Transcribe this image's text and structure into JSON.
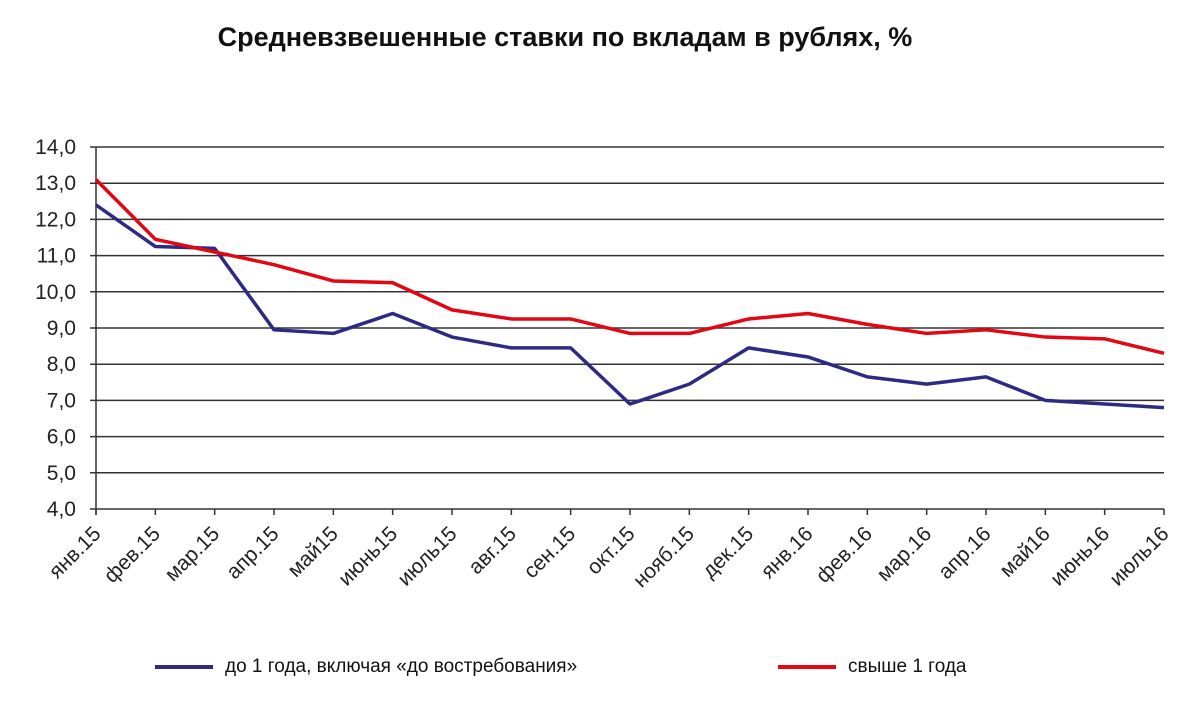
{
  "chart_data": {
    "type": "line",
    "title": "Средневзвешенные ставки по вкладам в рублях, %",
    "xlabel": "",
    "ylabel": "",
    "ylim": [
      4,
      14
    ],
    "yticks": [
      "4,0",
      "5,0",
      "6,0",
      "7,0",
      "8,0",
      "9,0",
      "10,0",
      "11,0",
      "12,0",
      "13,0",
      "14,0"
    ],
    "grid": true,
    "legend_position": "bottom",
    "categories": [
      "янв.15",
      "фев.15",
      "мар.15",
      "апр.15",
      "май15",
      "июнь15",
      "июль15",
      "авг.15",
      "сен.15",
      "окт.15",
      "нояб.15",
      "дек.15",
      "янв.16",
      "фев.16",
      "мар.16",
      "апр.16",
      "май16",
      "июнь16",
      "июль16"
    ],
    "series": [
      {
        "name": "до 1 года, включая «до востребования»",
        "color": "#2e2a84",
        "values": [
          12.4,
          11.25,
          11.2,
          8.95,
          8.85,
          9.4,
          8.75,
          8.45,
          8.45,
          6.9,
          7.45,
          8.45,
          8.2,
          7.65,
          7.45,
          7.65,
          7.0,
          6.9,
          6.8
        ]
      },
      {
        "name": "свыше 1 года",
        "color": "#e30613",
        "values": [
          13.1,
          11.45,
          11.1,
          10.75,
          10.3,
          10.25,
          9.5,
          9.25,
          9.25,
          8.85,
          8.85,
          9.25,
          9.4,
          9.1,
          8.85,
          8.95,
          8.75,
          8.7,
          8.3
        ]
      }
    ]
  }
}
